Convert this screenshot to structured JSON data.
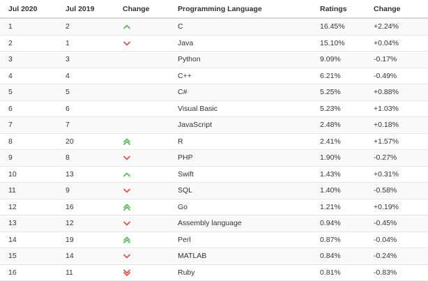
{
  "headers": {
    "jul2020": "Jul 2020",
    "jul2019": "Jul 2019",
    "change": "Change",
    "language": "Programming Language",
    "ratings": "Ratings",
    "change2": "Change"
  },
  "colors": {
    "up": "#5cb85c",
    "down": "#d9534f"
  },
  "rows": [
    {
      "rank2020": "1",
      "rank2019": "2",
      "trend": "up-icon",
      "language": "C",
      "rating": "16.45%",
      "change": "+2.24%"
    },
    {
      "rank2020": "2",
      "rank2019": "1",
      "trend": "down-icon",
      "language": "Java",
      "rating": "15.10%",
      "change": "+0.04%"
    },
    {
      "rank2020": "3",
      "rank2019": "3",
      "trend": "",
      "language": "Python",
      "rating": "9.09%",
      "change": "-0.17%"
    },
    {
      "rank2020": "4",
      "rank2019": "4",
      "trend": "",
      "language": "C++",
      "rating": "6.21%",
      "change": "-0.49%"
    },
    {
      "rank2020": "5",
      "rank2019": "5",
      "trend": "",
      "language": "C#",
      "rating": "5.25%",
      "change": "+0.88%"
    },
    {
      "rank2020": "6",
      "rank2019": "6",
      "trend": "",
      "language": "Visual Basic",
      "rating": "5.23%",
      "change": "+1.03%"
    },
    {
      "rank2020": "7",
      "rank2019": "7",
      "trend": "",
      "language": "JavaScript",
      "rating": "2.48%",
      "change": "+0.18%"
    },
    {
      "rank2020": "8",
      "rank2019": "20",
      "trend": "double-up-icon",
      "language": "R",
      "rating": "2.41%",
      "change": "+1.57%"
    },
    {
      "rank2020": "9",
      "rank2019": "8",
      "trend": "down-icon",
      "language": "PHP",
      "rating": "1.90%",
      "change": "-0.27%"
    },
    {
      "rank2020": "10",
      "rank2019": "13",
      "trend": "up-icon",
      "language": "Swift",
      "rating": "1.43%",
      "change": "+0.31%"
    },
    {
      "rank2020": "11",
      "rank2019": "9",
      "trend": "down-icon",
      "language": "SQL",
      "rating": "1.40%",
      "change": "-0.58%"
    },
    {
      "rank2020": "12",
      "rank2019": "16",
      "trend": "double-up-icon",
      "language": "Go",
      "rating": "1.21%",
      "change": "+0.19%"
    },
    {
      "rank2020": "13",
      "rank2019": "12",
      "trend": "down-icon",
      "language": "Assembly language",
      "rating": "0.94%",
      "change": "-0.45%"
    },
    {
      "rank2020": "14",
      "rank2019": "19",
      "trend": "double-up-icon",
      "language": "Perl",
      "rating": "0.87%",
      "change": "-0.04%"
    },
    {
      "rank2020": "15",
      "rank2019": "14",
      "trend": "down-icon",
      "language": "MATLAB",
      "rating": "0.84%",
      "change": "-0.24%"
    },
    {
      "rank2020": "16",
      "rank2019": "11",
      "trend": "double-down-icon",
      "language": "Ruby",
      "rating": "0.81%",
      "change": "-0.83%"
    }
  ]
}
